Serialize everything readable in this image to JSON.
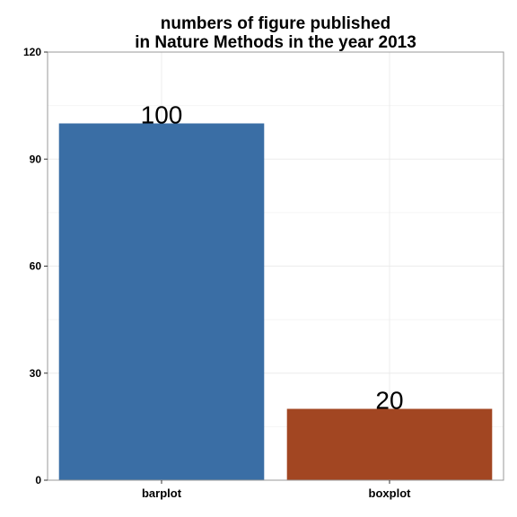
{
  "chart_data": {
    "type": "bar",
    "title_lines": [
      "numbers of figure published",
      "in Nature Methods in the year 2013"
    ],
    "categories": [
      "barplot",
      "boxplot"
    ],
    "values": [
      100,
      20
    ],
    "data_labels": [
      "100",
      "20"
    ],
    "colors": [
      "#3a6ea5",
      "#a24622"
    ],
    "ylim": [
      0,
      120
    ],
    "yticks": [
      0,
      30,
      60,
      90,
      120
    ],
    "ytick_labels": [
      "0",
      "30",
      "60",
      "90",
      "120"
    ],
    "xlabel": "",
    "ylabel": "",
    "grid": true,
    "legend": "none"
  }
}
